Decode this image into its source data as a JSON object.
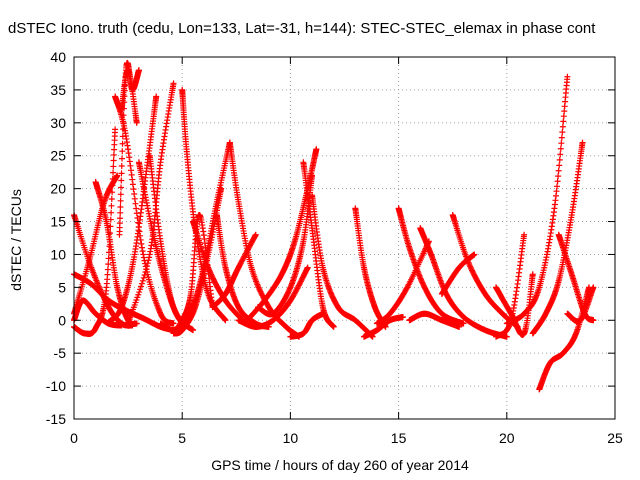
{
  "chart_data": {
    "type": "scatter",
    "title": "dSTEC Iono. truth (cedu, Lon=133, Lat=-31, h=144): STEC-STEC_elemax in phase cont",
    "xlabel": "GPS time / hours of day 260 of year 2014",
    "ylabel": "dSTEC  / TECUs",
    "xlim": [
      0,
      25
    ],
    "ylim": [
      -15,
      40
    ],
    "xticks": [
      "0",
      "5",
      "10",
      "15",
      "20",
      "25"
    ],
    "yticks": [
      "-15",
      "-10",
      "-5",
      "0",
      "5",
      "10",
      "15",
      "20",
      "25",
      "30",
      "35",
      "40"
    ],
    "grid": true,
    "marker": "plus",
    "color": "#ff0000",
    "series": [
      {
        "x": [
          0.0,
          0.8,
          1.6,
          2.2,
          2.7
        ],
        "y": [
          16,
          8,
          2,
          -0.5,
          -0.8
        ]
      },
      {
        "x": [
          0.0,
          0.8,
          1.6,
          2.4,
          3.2,
          4.0,
          4.6
        ],
        "y": [
          7,
          5.5,
          3,
          1.5,
          0.3,
          -1.0,
          -1.5
        ]
      },
      {
        "x": [
          0.0,
          0.5,
          1.0,
          1.5,
          1.9
        ],
        "y": [
          -1,
          -2,
          -1.2,
          5,
          29
        ]
      },
      {
        "x": [
          0.0,
          0.7,
          1.4,
          2.0
        ],
        "y": [
          1,
          9,
          18,
          22
        ]
      },
      {
        "x": [
          0.0,
          0.4,
          1.0,
          1.6,
          2.2
        ],
        "y": [
          0,
          3,
          1,
          -0.5,
          -0.8
        ]
      },
      {
        "x": [
          1.0,
          1.5,
          2.0,
          2.5,
          2.9
        ],
        "y": [
          21,
          15,
          5,
          0,
          -0.5
        ]
      },
      {
        "x": [
          1.6,
          2.2,
          2.8,
          3.4,
          3.8
        ],
        "y": [
          -0.3,
          2,
          10,
          24,
          34
        ]
      },
      {
        "x": [
          1.9,
          2.4,
          3.2,
          4.0,
          4.6
        ],
        "y": [
          34,
          28,
          10,
          1,
          -0.5
        ]
      },
      {
        "x": [
          2.1,
          2.4,
          2.7,
          3.0
        ],
        "y": [
          13,
          38,
          35,
          38
        ]
      },
      {
        "x": [
          2.2,
          2.5,
          2.9
        ],
        "y": [
          32,
          38,
          30
        ]
      },
      {
        "x": [
          2.5,
          3.5,
          4.0,
          4.6
        ],
        "y": [
          -0.5,
          10,
          24,
          36
        ]
      },
      {
        "x": [
          3.0,
          3.6,
          4.2,
          4.8,
          5.5
        ],
        "y": [
          24,
          14,
          6,
          0.5,
          -1.5
        ]
      },
      {
        "x": [
          3.5,
          4.0,
          4.5,
          5.0
        ],
        "y": [
          25,
          12,
          3,
          -0.5
        ]
      },
      {
        "x": [
          4.0,
          4.6,
          5.0,
          5.4,
          5.8,
          6.4
        ],
        "y": [
          -0.5,
          -1.5,
          0,
          4,
          16,
          2
        ]
      },
      {
        "x": [
          4.6,
          5.0,
          5.6,
          6.2,
          6.8
        ],
        "y": [
          -2,
          -1.5,
          2,
          10,
          20
        ]
      },
      {
        "x": [
          5.0,
          5.2,
          5.6,
          6.2,
          7.0
        ],
        "y": [
          35,
          26,
          14,
          4,
          0
        ]
      },
      {
        "x": [
          5.0,
          5.5,
          6.0,
          6.6,
          7.2
        ],
        "y": [
          -1,
          2,
          8,
          18,
          27
        ]
      },
      {
        "x": [
          5.5,
          6.2,
          7.0,
          7.8
        ],
        "y": [
          15,
          8,
          3,
          0
        ]
      },
      {
        "x": [
          6.4,
          7.0,
          7.6,
          8.4
        ],
        "y": [
          2,
          4,
          8,
          13
        ]
      },
      {
        "x": [
          6.6,
          7.0,
          7.6,
          8.4,
          9.0
        ],
        "y": [
          16,
          8,
          2,
          -0.5,
          -1
        ]
      },
      {
        "x": [
          7.2,
          7.6,
          8.2,
          9.0,
          9.8,
          10.4
        ],
        "y": [
          27,
          18,
          8,
          2,
          -1.0,
          -2.5
        ]
      },
      {
        "x": [
          7.6,
          8.4,
          9.2,
          10.0,
          10.8
        ],
        "y": [
          0,
          -1,
          0,
          3,
          8
        ]
      },
      {
        "x": [
          8.0,
          8.8,
          9.6,
          10.2,
          10.8,
          11.2
        ],
        "y": [
          0,
          3,
          7,
          12,
          20,
          26
        ]
      },
      {
        "x": [
          8.5,
          9.2,
          10.0,
          10.6,
          11.0
        ],
        "y": [
          2,
          1,
          5,
          12,
          22
        ]
      },
      {
        "x": [
          10.6,
          11.0,
          11.5,
          12.0
        ],
        "y": [
          24,
          14,
          2,
          -1
        ]
      },
      {
        "x": [
          10.0,
          10.6,
          11.0,
          11.5
        ],
        "y": [
          -2.5,
          -2.0,
          0,
          1
        ]
      },
      {
        "x": [
          11.0,
          11.5,
          12.2,
          13.0,
          13.8
        ],
        "y": [
          19,
          8,
          2,
          0,
          -2.5
        ]
      },
      {
        "x": [
          13.0,
          13.4,
          13.9,
          14.4
        ],
        "y": [
          17,
          8,
          2,
          -1
        ]
      },
      {
        "x": [
          13.4,
          14.0,
          14.6,
          15.2
        ],
        "y": [
          -2.5,
          -1.5,
          0,
          0.5
        ]
      },
      {
        "x": [
          14.0,
          14.6,
          15.4,
          16.4
        ],
        "y": [
          -0.5,
          1,
          5,
          12
        ]
      },
      {
        "x": [
          15.0,
          15.5,
          16.2,
          17.0,
          18.0
        ],
        "y": [
          17,
          11,
          5,
          1,
          -0.5
        ]
      },
      {
        "x": [
          15.5,
          16.2,
          17.0,
          17.8
        ],
        "y": [
          0,
          1,
          0,
          -1
        ]
      },
      {
        "x": [
          16.0,
          16.5,
          17.2,
          18.0,
          19.0,
          20.0
        ],
        "y": [
          14,
          10,
          4,
          0.5,
          -1.5,
          -2.5
        ]
      },
      {
        "x": [
          17.5,
          18.2,
          19.0,
          19.8,
          20.5
        ],
        "y": [
          16,
          9,
          4,
          1,
          -1
        ]
      },
      {
        "x": [
          17.0,
          17.8,
          18.5
        ],
        "y": [
          4,
          8,
          10
        ]
      },
      {
        "x": [
          19.5,
          20.2,
          20.8,
          21.2
        ],
        "y": [
          5,
          1,
          -2,
          7
        ]
      },
      {
        "x": [
          19.5,
          20.2,
          20.8
        ],
        "y": [
          -2.5,
          0,
          13
        ]
      },
      {
        "x": [
          20.0,
          20.8,
          21.5,
          22.2,
          22.8
        ],
        "y": [
          -0.5,
          1,
          5,
          17,
          37
        ]
      },
      {
        "x": [
          21.2,
          21.8,
          22.4,
          23.0,
          23.5
        ],
        "y": [
          -2,
          1,
          6,
          16,
          27
        ]
      },
      {
        "x": [
          21.5,
          22.0,
          22.6,
          23.2,
          23.8
        ],
        "y": [
          -10.5,
          -6.5,
          -5,
          -2,
          5
        ]
      },
      {
        "x": [
          22.4,
          23.0,
          23.6,
          24.0
        ],
        "y": [
          13,
          7,
          1,
          0
        ]
      },
      {
        "x": [
          22.8,
          23.4,
          24.0
        ],
        "y": [
          1,
          0,
          5
        ]
      }
    ]
  }
}
